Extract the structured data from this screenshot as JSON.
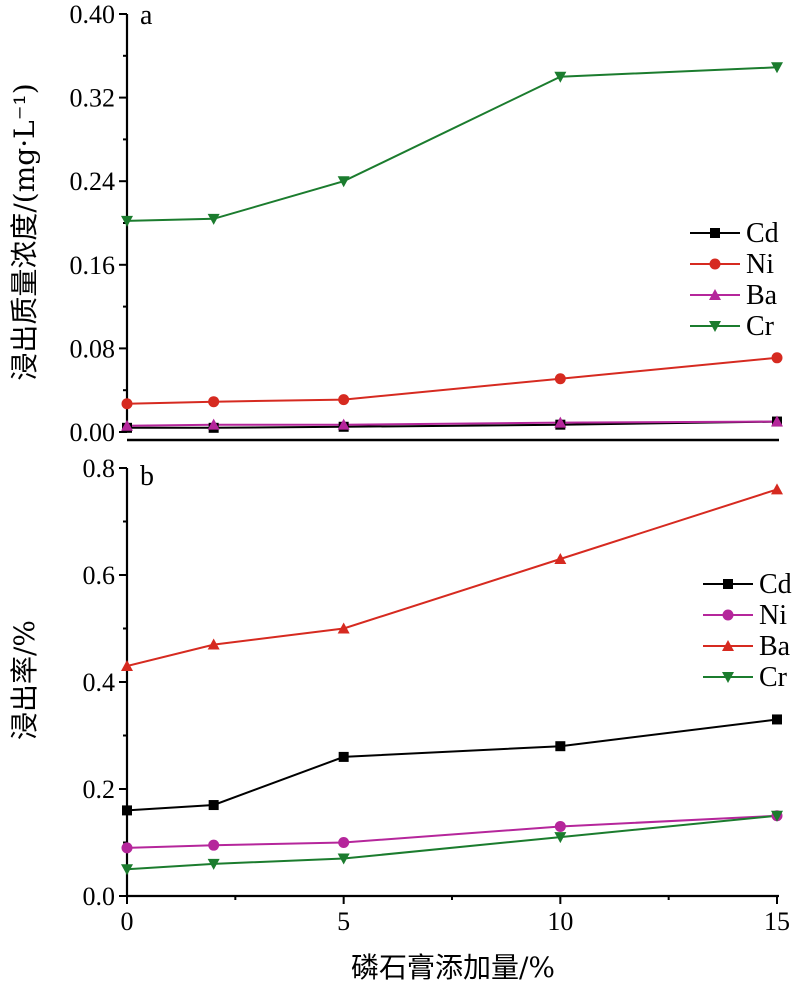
{
  "chart_data": [
    {
      "panel": "a",
      "type": "line",
      "ylabel": "浸出质量浓度/(mg·L⁻¹)",
      "xlabel": "",
      "xlim": [
        0,
        15
      ],
      "ylim": [
        0,
        0.4
      ],
      "yticks": [
        "0.00",
        "0.08",
        "0.16",
        "0.24",
        "0.32",
        "0.40"
      ],
      "yticks_values": [
        0,
        0.08,
        0.16,
        0.24,
        0.32,
        0.4
      ],
      "x": [
        0,
        2,
        5,
        10,
        15
      ],
      "legend_position": "right",
      "series": [
        {
          "name": "Cd",
          "color": "#000000",
          "marker": "square",
          "values": [
            0.004,
            0.004,
            0.005,
            0.007,
            0.01
          ]
        },
        {
          "name": "Ni",
          "color": "#d62a20",
          "marker": "circle",
          "values": [
            0.027,
            0.029,
            0.031,
            0.051,
            0.071
          ]
        },
        {
          "name": "Ba",
          "color": "#b5269b",
          "marker": "triangle-up",
          "values": [
            0.006,
            0.007,
            0.007,
            0.009,
            0.01
          ]
        },
        {
          "name": "Cr",
          "color": "#1b7c2e",
          "marker": "triangle-down",
          "values": [
            0.202,
            0.204,
            0.24,
            0.34,
            0.349
          ]
        }
      ]
    },
    {
      "panel": "b",
      "type": "line",
      "ylabel": "浸出率/%",
      "xlabel": "磷石膏添加量/%",
      "xlim": [
        0,
        15
      ],
      "ylim": [
        0,
        0.8
      ],
      "yticks": [
        "0.0",
        "0.2",
        "0.4",
        "0.6",
        "0.8"
      ],
      "yticks_values": [
        0,
        0.2,
        0.4,
        0.6,
        0.8
      ],
      "xticks": [
        "0",
        "5",
        "10",
        "15"
      ],
      "xticks_values": [
        0,
        5,
        10,
        15
      ],
      "x": [
        0,
        2,
        5,
        10,
        15
      ],
      "legend_position": "right",
      "series": [
        {
          "name": "Cd",
          "color": "#000000",
          "marker": "square",
          "values": [
            0.16,
            0.17,
            0.26,
            0.28,
            0.33
          ]
        },
        {
          "name": "Ni",
          "color": "#b5269b",
          "marker": "circle",
          "values": [
            0.09,
            0.095,
            0.1,
            0.13,
            0.15
          ]
        },
        {
          "name": "Ba",
          "color": "#d62a20",
          "marker": "triangle-up",
          "values": [
            0.43,
            0.47,
            0.5,
            0.63,
            0.76
          ]
        },
        {
          "name": "Cr",
          "color": "#1b7c2e",
          "marker": "triangle-down",
          "values": [
            0.05,
            0.06,
            0.07,
            0.11,
            0.15
          ]
        }
      ]
    }
  ]
}
